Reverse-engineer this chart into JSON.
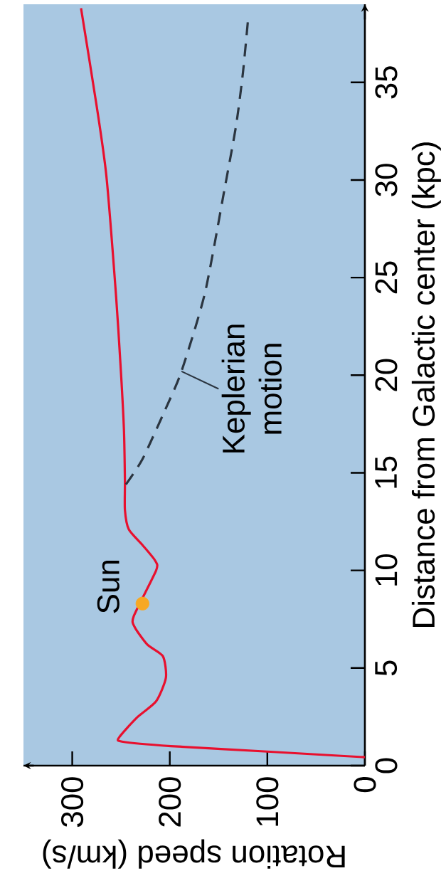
{
  "chart_data": {
    "type": "line",
    "xlabel": "Rotation speed (km/s)",
    "ylabel": "Distance from Galactic center (kpc)",
    "xlim": [
      350,
      0
    ],
    "ylim": [
      0,
      39
    ],
    "xticks": [
      0,
      100,
      200,
      300
    ],
    "yticks": [
      0,
      5,
      10,
      15,
      20,
      25,
      30,
      35
    ],
    "series": [
      {
        "color": "#e8102e",
        "values": [
          0.43,
          0.72,
          1.0,
          1.23,
          1.44,
          2.45,
          3.3,
          4.5,
          5.6,
          6.2,
          7.1,
          7.65,
          10.0,
          10.5,
          11.3,
          12.1,
          13.1,
          14.6,
          17.2,
          20.1,
          24.0,
          30.2,
          33.8,
          38.8
        ],
        "x": [
          0,
          100,
          199,
          249,
          252,
          234,
          214,
          204,
          207,
          223,
          236,
          237,
          214,
          215,
          228,
          242,
          246,
          246,
          247,
          250,
          255,
          265,
          275,
          291
        ]
      },
      {
        "name": "Keplerian motion",
        "color": "#2b3540",
        "line_style": "dashed",
        "values": [
          14.4,
          15.7,
          18.2,
          20.2,
          24.2,
          29.5,
          32.8,
          35.5,
          38.1
        ],
        "x": [
          245,
          228,
          205,
          188,
          164,
          144,
          132,
          125,
          120
        ]
      },
      {
        "name": "Sun",
        "type": "scatter",
        "marker": "circle",
        "color": "#f7a823",
        "values": [
          8.3
        ],
        "x": [
          228
        ]
      }
    ]
  }
}
